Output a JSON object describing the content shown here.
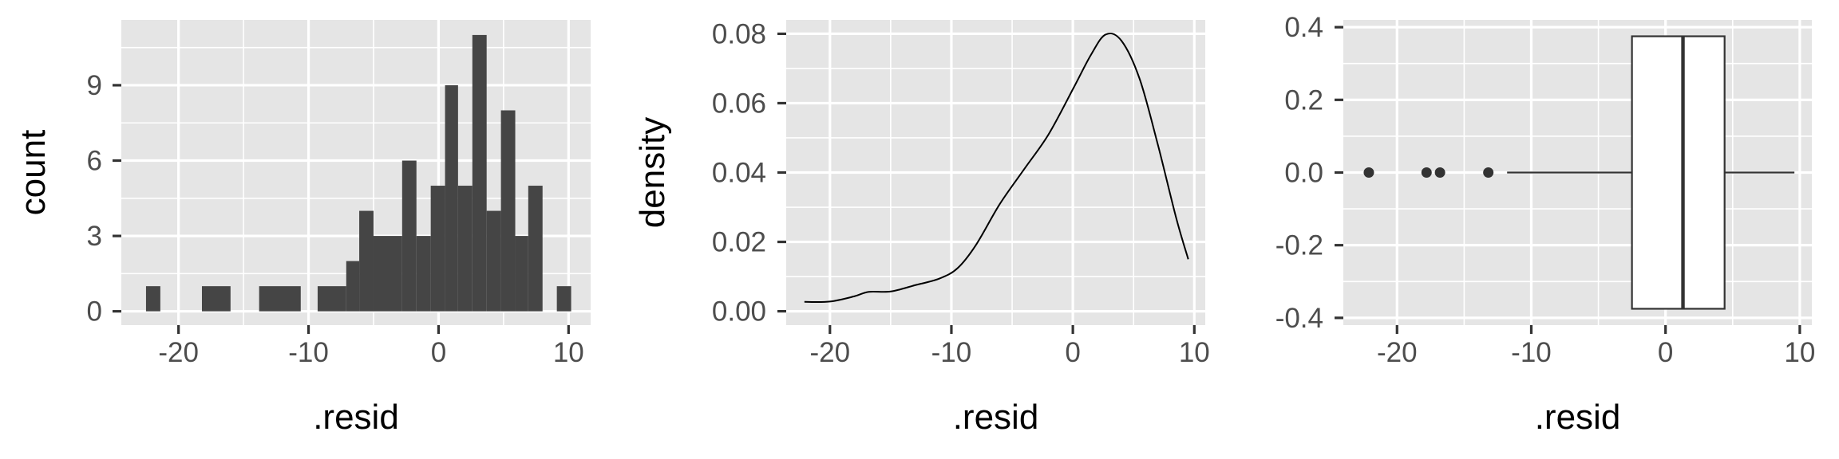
{
  "chart_data": [
    {
      "type": "histogram",
      "xlabel": ".resid",
      "ylabel": "count",
      "xlim": [
        -24.4,
        11.7
      ],
      "ylim": [
        -0.55,
        11.6
      ],
      "xticks": [
        -20,
        -10,
        0,
        10
      ],
      "yticks": [
        0,
        3,
        6,
        9
      ],
      "bins": [
        {
          "x0": -22.5,
          "x1": -21.4,
          "count": 1
        },
        {
          "x0": -18.2,
          "x1": -16.0,
          "count": 1
        },
        {
          "x0": -13.8,
          "x1": -10.6,
          "count": 1
        },
        {
          "x0": -9.3,
          "x1": -7.1,
          "count": 1
        },
        {
          "x0": -7.1,
          "x1": -6.1,
          "count": 2
        },
        {
          "x0": -6.1,
          "x1": -5.0,
          "count": 4
        },
        {
          "x0": -5.0,
          "x1": -2.8,
          "count": 3
        },
        {
          "x0": -2.8,
          "x1": -1.7,
          "count": 6
        },
        {
          "x0": -1.7,
          "x1": -0.6,
          "count": 3
        },
        {
          "x0": -0.6,
          "x1": 0.5,
          "count": 5
        },
        {
          "x0": 0.5,
          "x1": 1.5,
          "count": 9
        },
        {
          "x0": 1.5,
          "x1": 2.6,
          "count": 5
        },
        {
          "x0": 2.6,
          "x1": 3.7,
          "count": 11
        },
        {
          "x0": 3.7,
          "x1": 4.8,
          "count": 4
        },
        {
          "x0": 4.8,
          "x1": 5.9,
          "count": 8
        },
        {
          "x0": 5.9,
          "x1": 6.9,
          "count": 3
        },
        {
          "x0": 6.9,
          "x1": 8.0,
          "count": 5
        },
        {
          "x0": 9.1,
          "x1": 10.2,
          "count": 1
        }
      ]
    },
    {
      "type": "line",
      "xlabel": ".resid",
      "ylabel": "density",
      "xlim": [
        -23.6,
        10.9
      ],
      "ylim": [
        -0.004,
        0.084
      ],
      "xticks": [
        -20,
        -10,
        0,
        10
      ],
      "yticks": [
        0.0,
        0.02,
        0.04,
        0.06,
        0.08
      ],
      "ytick_labels": [
        "0.00",
        "0.02",
        "0.04",
        "0.06",
        "0.08"
      ],
      "x": [
        -22.1,
        -20,
        -18,
        -16.8,
        -15,
        -13,
        -11,
        -9.5,
        -8,
        -6,
        -4,
        -2,
        0,
        1.5,
        2.7,
        4,
        5.5,
        7,
        8.5,
        9.5
      ],
      "y": [
        0.0027,
        0.0028,
        0.0043,
        0.0056,
        0.0057,
        0.0075,
        0.0094,
        0.0124,
        0.019,
        0.031,
        0.041,
        0.051,
        0.064,
        0.074,
        0.0798,
        0.078,
        0.067,
        0.048,
        0.027,
        0.015
      ]
    },
    {
      "type": "boxplot",
      "xlabel": ".resid",
      "xlim": [
        -24.0,
        10.9
      ],
      "ylim": [
        -0.42,
        0.42
      ],
      "xticks": [
        -20,
        -10,
        0,
        10
      ],
      "yticks": [
        -0.4,
        -0.2,
        0.0,
        0.2,
        0.4
      ],
      "ytick_labels": [
        "-0.4",
        "-0.2",
        "0.0",
        "0.2",
        "0.4"
      ],
      "whisker_low": -11.8,
      "q1": -2.5,
      "median": 1.3,
      "q3": 4.4,
      "whisker_high": 9.6,
      "box_half_width": 0.375,
      "outliers": [
        -22.1,
        -17.8,
        -16.8,
        -13.2
      ]
    }
  ]
}
